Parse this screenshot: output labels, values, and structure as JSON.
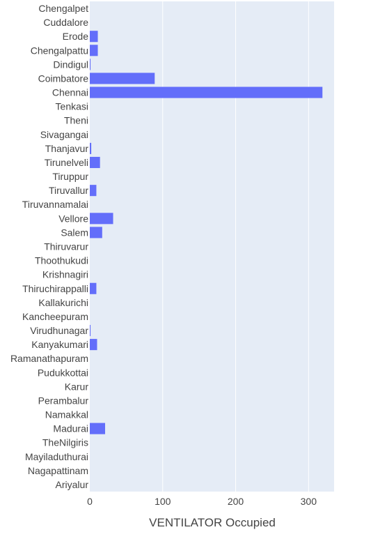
{
  "chart_data": {
    "type": "bar",
    "orientation": "horizontal",
    "xlabel": "VENTILATOR Occupied",
    "ylabel": "",
    "xlim": [
      0,
      335
    ],
    "xticks": [
      0,
      100,
      200,
      300
    ],
    "grid": true,
    "legend": "none",
    "bar_color": "#636efa",
    "plot_background": "#e5ecf6",
    "categories": [
      "Chengalpet",
      "Cuddalore",
      "Erode",
      "Chengalpattu",
      "Dindigul",
      "Coimbatore",
      "Chennai",
      "Tenkasi",
      "Theni",
      "Sivagangai",
      "Thanjavur",
      "Tirunelveli",
      "Tiruppur",
      "Tiruvallur",
      "Tiruvannamalai",
      "Vellore",
      "Salem",
      "Thiruvarur",
      "Thoothukudi",
      "Krishnagiri",
      "Thiruchirappalli",
      "Kallakurichi",
      "Kancheepuram",
      "Virudhunagar",
      "Kanyakumari",
      "Ramanathapuram",
      "Pudukkottai",
      "Karur",
      "Perambalur",
      "Namakkal",
      "Madurai",
      "TheNilgiris",
      "Mayiladuthurai",
      "Nagapattinam",
      "Ariyalur"
    ],
    "values": [
      0,
      0,
      11,
      11,
      1,
      89,
      319,
      0,
      0,
      0,
      2,
      14,
      0,
      9,
      0,
      32,
      17,
      0,
      0,
      0,
      9,
      0,
      0,
      1,
      10,
      0,
      0,
      0,
      0,
      0,
      21,
      0,
      0,
      0,
      0
    ]
  }
}
